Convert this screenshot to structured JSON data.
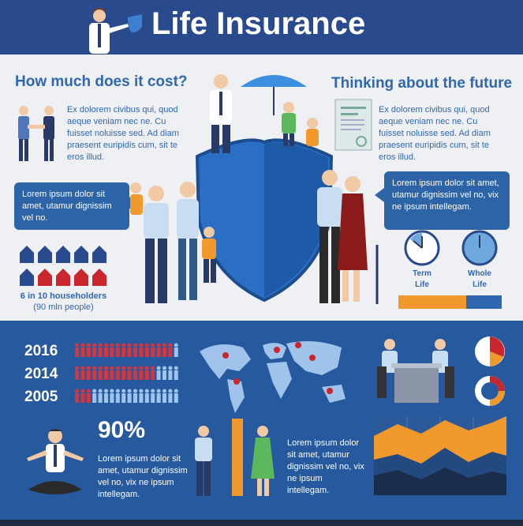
{
  "header": {
    "title": "Life Insurance"
  },
  "left_section": {
    "title": "How much does it cost?",
    "paragraph": "Ex dolorem civibus qui, quod aeque veniam nec ne. Cu fuisset noluisse sed. Ad diam praesent euripidis cum, sit te eros illud.",
    "bubble": "Lorem ipsum dolor sit amet, utamur dignissim vel no.",
    "households_label": "6 in 10 householders",
    "households_sub": "(90 mln people)",
    "households_total": 10,
    "households_highlighted": 6
  },
  "right_section": {
    "title": "Thinking about the future",
    "paragraph": "Ex dolorem civibus qui, quod aeque veniam nec ne. Cu fuisset noluisse sed. Ad diam praesent euripidis cum, sit te eros illud.",
    "bubble": "Lorem ipsum dolor sit amet, utamur dignissim vel no, vix ne ipsum intellegam.",
    "clock_1_label": "Term\nLife",
    "clock_2_label": "Whole\nLife"
  },
  "years": [
    {
      "year": "2016",
      "red": 11,
      "total": 12
    },
    {
      "year": "2014",
      "red": 9,
      "total": 12
    },
    {
      "year": "2005",
      "red": 2,
      "total": 12
    }
  ],
  "stat": {
    "value": "90%",
    "text": "Lorem ipsum dolor sit amet, utamur dignissim vel no, vix ne ipsum intellegam."
  },
  "bottom_text": "Lorem ipsum dolor sit amet, utamur dignissim vel no, vix ne ipsum intellegam.",
  "colors": {
    "navy": "#2a4a8e",
    "blue": "#2f67b1",
    "orange": "#f2992e",
    "red": "#c9262d",
    "light": "#eef0f4"
  }
}
